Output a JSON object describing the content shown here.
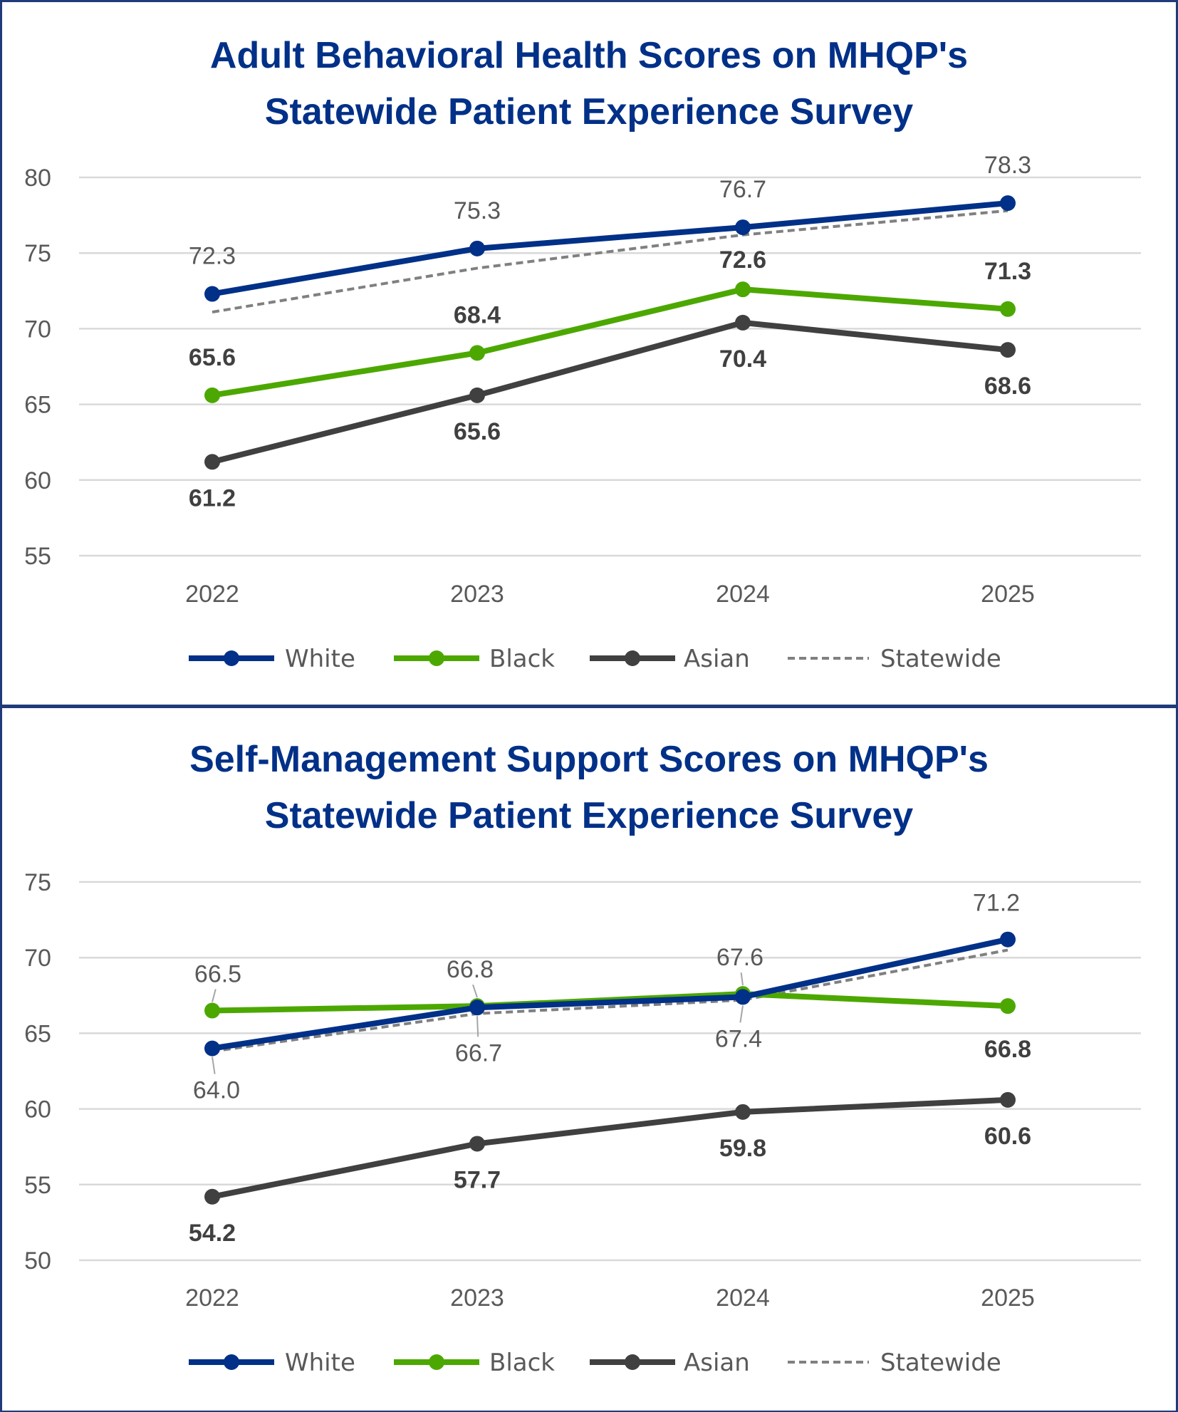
{
  "colors": {
    "White": "#003087",
    "Black": "#4ca800",
    "Asian": "#404040",
    "Statewide": "#808080",
    "border": "#1f3b7a",
    "grid": "#d9d9d9"
  },
  "chart_data": [
    {
      "type": "line",
      "title_lines": [
        "Adult Behavioral Health Scores on MHQP's",
        "Statewide Patient Experience Survey"
      ],
      "categories": [
        "2022",
        "2023",
        "2024",
        "2025"
      ],
      "ylim": [
        55,
        80
      ],
      "yticks": [
        "55",
        "60",
        "65",
        "70",
        "75",
        "80"
      ],
      "grid": true,
      "legend": "bottom",
      "series": [
        {
          "name": "White",
          "values": [
            72.3,
            75.3,
            76.7,
            78.3
          ],
          "labels": [
            "72.3",
            "75.3",
            "76.7",
            "78.3"
          ]
        },
        {
          "name": "Black",
          "values": [
            65.6,
            68.4,
            72.6,
            71.3
          ],
          "labels": [
            "65.6",
            "68.4",
            "72.6",
            "71.3"
          ]
        },
        {
          "name": "Asian",
          "values": [
            61.2,
            65.6,
            70.4,
            68.6
          ],
          "labels": [
            "61.2",
            "65.6",
            "70.4",
            "68.6"
          ]
        },
        {
          "name": "Statewide",
          "values": [
            71.1,
            74.0,
            76.2,
            77.8
          ],
          "dashed": true
        }
      ]
    },
    {
      "type": "line",
      "title_lines": [
        "Self-Management Support Scores on MHQP's",
        "Statewide Patient Experience Survey"
      ],
      "categories": [
        "2022",
        "2023",
        "2024",
        "2025"
      ],
      "ylim": [
        50,
        75
      ],
      "yticks": [
        "50",
        "55",
        "60",
        "65",
        "70",
        "75"
      ],
      "grid": true,
      "legend": "bottom",
      "series": [
        {
          "name": "White",
          "values": [
            64.0,
            66.7,
            67.4,
            71.2
          ],
          "labels": [
            "64.0",
            "66.7",
            "67.4",
            "71.2"
          ]
        },
        {
          "name": "Black",
          "values": [
            66.5,
            66.8,
            67.6,
            66.8
          ],
          "labels": [
            "66.5",
            "66.8",
            "67.6",
            "66.8"
          ]
        },
        {
          "name": "Asian",
          "values": [
            54.2,
            57.7,
            59.8,
            60.6
          ],
          "labels": [
            "54.2",
            "57.7",
            "59.8",
            "60.6"
          ]
        },
        {
          "name": "Statewide",
          "values": [
            63.8,
            66.3,
            67.2,
            70.5
          ],
          "dashed": true
        }
      ]
    }
  ]
}
